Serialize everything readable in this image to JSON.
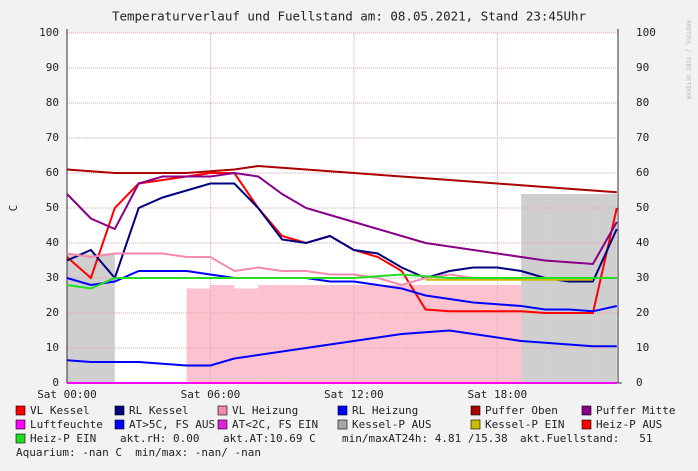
{
  "chart_data": {
    "type": "line",
    "title": "Temperaturverlauf und Fuellstand am: 08.05.2021, Stand 23:45Uhr",
    "y_label": "C",
    "watermark": "RRDTOOL / TOBI OETIKER",
    "x": [
      0,
      1,
      2,
      3,
      4,
      5,
      6,
      7,
      8,
      9,
      10,
      11,
      12,
      13,
      14,
      15,
      16,
      17,
      18,
      19,
      20,
      21,
      22,
      23
    ],
    "xlim": [
      0,
      23.05
    ],
    "xticks": [
      {
        "value": 0,
        "label": "Sat 00:00"
      },
      {
        "value": 6,
        "label": "Sat 06:00"
      },
      {
        "value": 12,
        "label": "Sat 12:00"
      },
      {
        "value": 18,
        "label": "Sat 18:00"
      }
    ],
    "ylim": [
      0,
      100
    ],
    "yticks": [
      0,
      10,
      20,
      30,
      40,
      50,
      60,
      70,
      80,
      90,
      100
    ],
    "grid": true,
    "areas": [
      {
        "color": "#f98fa8",
        "values": [
          null,
          null,
          null,
          null,
          null,
          27,
          28,
          27,
          28,
          28,
          28,
          28,
          28,
          28,
          28,
          28,
          28,
          28,
          28,
          null,
          null,
          null,
          null,
          null
        ]
      }
    ],
    "series": [
      {
        "name": "VL Kessel",
        "color": "#ff0000",
        "values": [
          36,
          30,
          50,
          57,
          58,
          59,
          60,
          60,
          50,
          42,
          40,
          42,
          38,
          36,
          32,
          21,
          20.5,
          20.5,
          20.5,
          20.5,
          20,
          20,
          20,
          50
        ]
      },
      {
        "name": "RL Kessel",
        "color": "#000080",
        "values": [
          35,
          38,
          30,
          50,
          53,
          55,
          57,
          57,
          50,
          41,
          40,
          42,
          38,
          37,
          33,
          30,
          32,
          33,
          33,
          32,
          30,
          29,
          29,
          44
        ]
      },
      {
        "name": "VL Heizung",
        "color": "#f48aac",
        "values": [
          37,
          36,
          37,
          37,
          37,
          36,
          36,
          32,
          33,
          32,
          32,
          31,
          31,
          30,
          28,
          30,
          31,
          30,
          30,
          30,
          30,
          30,
          30,
          30
        ]
      },
      {
        "name": "RL Heizung",
        "color": "#0000ff",
        "values": [
          30,
          28,
          29,
          32,
          32,
          32,
          31,
          30,
          30,
          30,
          30,
          29,
          29,
          28,
          27,
          25,
          24,
          23,
          22.5,
          22,
          21,
          21,
          20.5,
          22
        ]
      },
      {
        "name": "Puffer Oben",
        "color": "#aa0000",
        "values": [
          61,
          60.5,
          60,
          60,
          60,
          60,
          60.5,
          61,
          62,
          61.5,
          61,
          60.5,
          60,
          59.5,
          59,
          58.5,
          58,
          57.5,
          57,
          56.5,
          56,
          55.5,
          55,
          54.5
        ]
      },
      {
        "name": "Puffer Mitte",
        "color": "#880088",
        "values": [
          54,
          47,
          44,
          57,
          59,
          59,
          59,
          60,
          59,
          54,
          50,
          48,
          46,
          44,
          42,
          40,
          39,
          38,
          37,
          36,
          35,
          34.5,
          34,
          46
        ]
      },
      {
        "name": "Luftfeuchte",
        "color": "#ff00ff",
        "values": [
          0,
          0,
          0,
          0,
          0,
          0,
          0,
          0,
          0,
          0,
          0,
          0,
          0,
          0,
          0,
          0,
          0,
          0,
          0,
          0,
          0,
          0,
          0,
          0
        ]
      },
      {
        "name": "AT>5C, FS AUS",
        "color": "#0000ff",
        "values": [
          6.5,
          6,
          6,
          6,
          5.5,
          5,
          5,
          7,
          8,
          9,
          10,
          11,
          12,
          13,
          14,
          14.5,
          15,
          14,
          13,
          12,
          11.5,
          11,
          10.5,
          10.5
        ]
      },
      {
        "name": "AT<2C, FS EIN",
        "color": "#dd22dd",
        "values": [
          null,
          null,
          null,
          null,
          null,
          null,
          null,
          null,
          null,
          null,
          null,
          null,
          null,
          null,
          null,
          null,
          null,
          null,
          null,
          null,
          null,
          null,
          null,
          null
        ]
      },
      {
        "name": "Kessel-P AUS",
        "color": "#a8a8a8",
        "kind": "area",
        "values": [
          37,
          37,
          null,
          null,
          null,
          null,
          null,
          null,
          null,
          null,
          null,
          null,
          null,
          null,
          null,
          null,
          null,
          null,
          null,
          54,
          54,
          54,
          54,
          null
        ]
      },
      {
        "name": "Kessel-P EIN",
        "color": "#ccbb00",
        "values": [
          null,
          null,
          null,
          null,
          null,
          null,
          null,
          null,
          null,
          null,
          null,
          null,
          null,
          null,
          null,
          29.5,
          29.5,
          29.5,
          29.5,
          29.5,
          29.5,
          29.5,
          29.5,
          null
        ]
      },
      {
        "name": "Heiz-P AUS",
        "color": "#ff0000",
        "values": [
          null,
          null,
          null,
          null,
          null,
          null,
          null,
          null,
          null,
          null,
          null,
          null,
          null,
          null,
          null,
          null,
          null,
          null,
          null,
          null,
          null,
          null,
          null,
          null
        ]
      },
      {
        "name": "Heiz-P EIN",
        "color": "#22dd22",
        "values": [
          28,
          27,
          30,
          30,
          30,
          30,
          30,
          30,
          30,
          30,
          30,
          30,
          30,
          30.5,
          31,
          30.5,
          30,
          30,
          30,
          30,
          30,
          30,
          30,
          30
        ]
      }
    ],
    "footer_texts": [
      "akt.rH: 0.00",
      "akt.AT:10.69 C",
      "min/maxAT24h: 4.81 /15.38",
      "akt.Fuellstand:   51",
      "Aquarium: -nan C  min/max: -nan/ -nan"
    ]
  }
}
